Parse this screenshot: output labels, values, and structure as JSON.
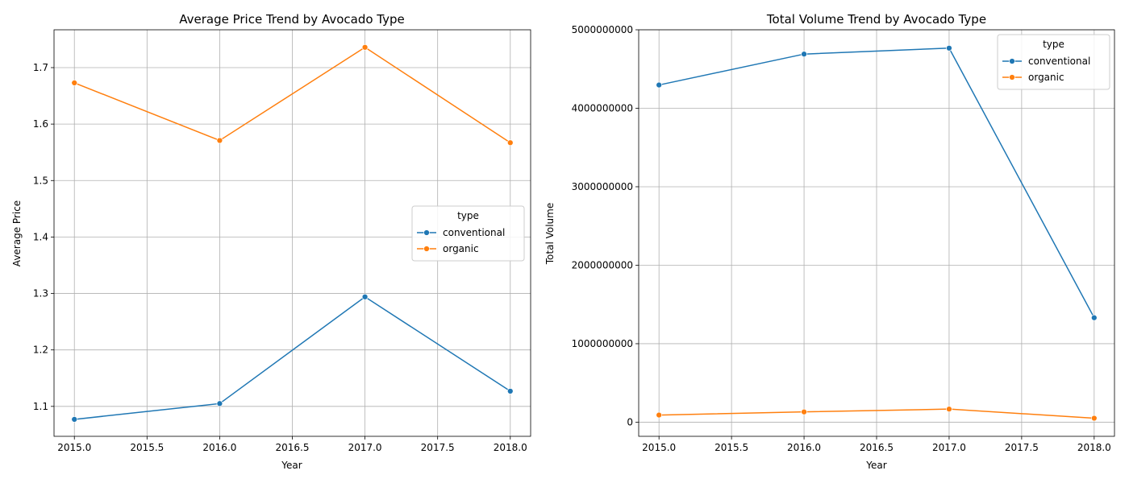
{
  "chart_data": [
    {
      "type": "line",
      "title": "Average Price Trend by Avocado Type",
      "xlabel": "Year",
      "ylabel": "Average Price",
      "x": [
        2015,
        2016,
        2017,
        2018
      ],
      "xlim": [
        2014.86,
        2018.14
      ],
      "ylim": [
        1.047,
        1.767
      ],
      "xticks": [
        2015.0,
        2015.5,
        2016.0,
        2016.5,
        2017.0,
        2017.5,
        2018.0
      ],
      "xtick_labels": [
        "2015.0",
        "2015.5",
        "2016.0",
        "2016.5",
        "2017.0",
        "2017.5",
        "2018.0"
      ],
      "yticks": [
        1.1,
        1.2,
        1.3,
        1.4,
        1.5,
        1.6,
        1.7
      ],
      "ytick_labels": [
        "1.1",
        "1.2",
        "1.3",
        "1.4",
        "1.5",
        "1.6",
        "1.7"
      ],
      "grid": true,
      "legend": {
        "title": "type",
        "placement": "center-right"
      },
      "series": [
        {
          "name": "conventional",
          "color": "#1f77b4",
          "values": [
            1.077,
            1.105,
            1.294,
            1.127
          ]
        },
        {
          "name": "organic",
          "color": "#ff7f0e",
          "values": [
            1.673,
            1.571,
            1.736,
            1.567
          ]
        }
      ]
    },
    {
      "type": "line",
      "title": "Total Volume Trend by Avocado Type",
      "xlabel": "Year",
      "ylabel": "Total Volume",
      "x": [
        2015,
        2016,
        2017,
        2018
      ],
      "xlim": [
        2014.86,
        2018.14
      ],
      "ylim": [
        -180000000,
        5000000000
      ],
      "xticks": [
        2015.0,
        2015.5,
        2016.0,
        2016.5,
        2017.0,
        2017.5,
        2018.0
      ],
      "xtick_labels": [
        "2015.0",
        "2015.5",
        "2016.0",
        "2016.5",
        "2017.0",
        "2017.5",
        "2018.0"
      ],
      "yticks": [
        0,
        1000000000,
        2000000000,
        3000000000,
        4000000000,
        5000000000
      ],
      "ytick_labels": [
        "0",
        "1000000000",
        "2000000000",
        "3000000000",
        "4000000000",
        "5000000000"
      ],
      "grid": true,
      "legend": {
        "title": "type",
        "placement": "top-right"
      },
      "series": [
        {
          "name": "conventional",
          "color": "#1f77b4",
          "values": [
            4296600000,
            4690200000,
            4766400000,
            1331000000
          ]
        },
        {
          "name": "organic",
          "color": "#ff7f0e",
          "values": [
            91000000,
            131000000,
            167000000,
            51000000
          ]
        }
      ]
    }
  ]
}
